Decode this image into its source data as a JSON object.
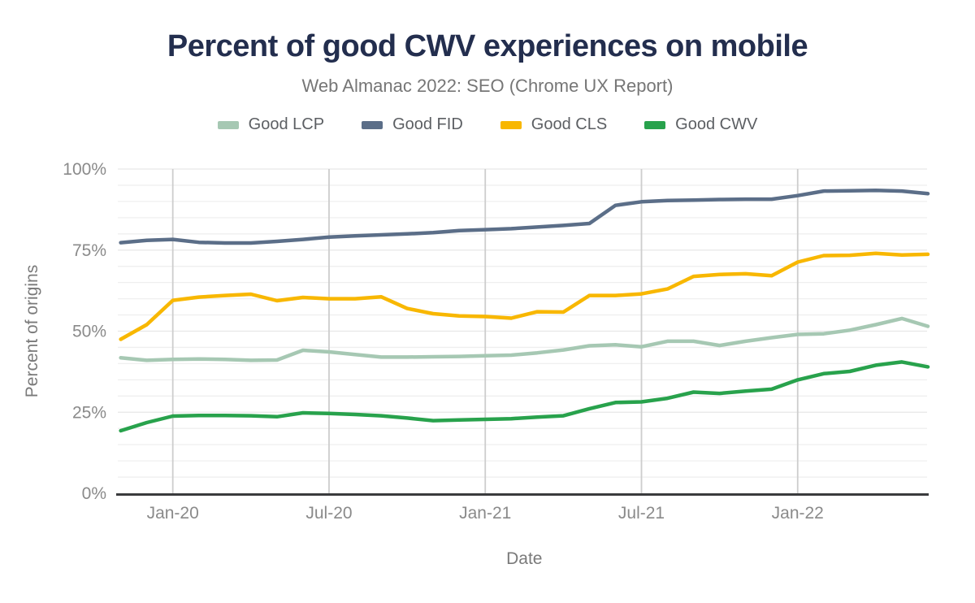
{
  "header": {
    "title": "Percent of good CWV experiences on mobile",
    "subtitle": "Web Almanac 2022: SEO (Chrome UX Report)"
  },
  "chart_data": {
    "type": "line",
    "title": "Percent of good CWV experiences on mobile",
    "subtitle": "Web Almanac 2022: SEO (Chrome UX Report)",
    "xlabel": "Date",
    "ylabel": "Percent of origins",
    "ylim": [
      0,
      100
    ],
    "y_major_ticks": [
      0,
      25,
      50,
      75,
      100
    ],
    "y_tick_labels": [
      "0%",
      "25%",
      "50%",
      "75%",
      "100%"
    ],
    "y_minor_grid_step": 5,
    "grid": "on",
    "legend_position": "top",
    "x": [
      "Nov-19",
      "Dec-19",
      "Jan-20",
      "Feb-20",
      "Mar-20",
      "Apr-20",
      "May-20",
      "Jun-20",
      "Jul-20",
      "Aug-20",
      "Sep-20",
      "Oct-20",
      "Nov-20",
      "Dec-20",
      "Jan-21",
      "Feb-21",
      "Mar-21",
      "Apr-21",
      "May-21",
      "Jun-21",
      "Jul-21",
      "Aug-21",
      "Sep-21",
      "Oct-21",
      "Nov-21",
      "Dec-21",
      "Jan-22",
      "Feb-22",
      "Mar-22",
      "Apr-22",
      "May-22",
      "Jun-22"
    ],
    "x_tick_labels": [
      "Jan-20",
      "Jul-20",
      "Jan-21",
      "Jul-21",
      "Jan-22"
    ],
    "x_tick_indices": [
      2,
      8,
      14,
      20,
      26
    ],
    "series": [
      {
        "name": "Good LCP",
        "color": "#a6c8b3",
        "values": [
          41.8,
          41.0,
          41.3,
          41.4,
          41.3,
          41.0,
          41.1,
          44.1,
          43.6,
          42.8,
          42.0,
          42.0,
          42.1,
          42.2,
          42.4,
          42.6,
          43.3,
          44.2,
          45.5,
          45.8,
          45.2,
          46.9,
          46.9,
          45.6,
          46.9,
          48.0,
          49.0,
          49.2,
          50.3,
          52.0,
          53.9,
          51.5
        ]
      },
      {
        "name": "Good FID",
        "color": "#5b6e88",
        "values": [
          77.3,
          78.0,
          78.3,
          77.4,
          77.2,
          77.2,
          77.7,
          78.3,
          79.0,
          79.4,
          79.7,
          80.0,
          80.4,
          81.0,
          81.3,
          81.6,
          82.1,
          82.6,
          83.2,
          88.8,
          89.9,
          90.3,
          90.4,
          90.6,
          90.7,
          90.7,
          91.8,
          93.2,
          93.3,
          93.4,
          93.2,
          92.4
        ]
      },
      {
        "name": "Good CLS",
        "color": "#f8b700",
        "values": [
          47.5,
          52.0,
          59.5,
          60.5,
          61.0,
          61.4,
          59.4,
          60.4,
          60.0,
          60.0,
          60.6,
          57.0,
          55.4,
          54.7,
          54.5,
          54.0,
          56.0,
          55.9,
          61.0,
          61.0,
          61.5,
          63.0,
          66.9,
          67.5,
          67.7,
          67.1,
          71.3,
          73.3,
          73.4,
          74.0,
          73.5,
          73.7
        ]
      },
      {
        "name": "Good CWV",
        "color": "#28a24c",
        "values": [
          19.3,
          21.8,
          23.8,
          24.0,
          24.0,
          23.9,
          23.6,
          24.8,
          24.6,
          24.3,
          23.9,
          23.2,
          22.4,
          22.6,
          22.8,
          23.0,
          23.5,
          23.9,
          26.1,
          28.0,
          28.2,
          29.3,
          31.2,
          30.8,
          31.5,
          32.1,
          35.0,
          36.9,
          37.6,
          39.5,
          40.5,
          39.0
        ]
      }
    ]
  },
  "colors": {
    "title": "#232e4e",
    "subtitle": "#767676",
    "tick_label": "#8a8a8a",
    "axis_title": "#7a7a7a",
    "grid_minor": "#efefef",
    "grid_major": "#e7e7e7",
    "grid_vertical": "#cdcdcd",
    "axis_line": "#3a3b3d",
    "background": "#ffffff"
  }
}
